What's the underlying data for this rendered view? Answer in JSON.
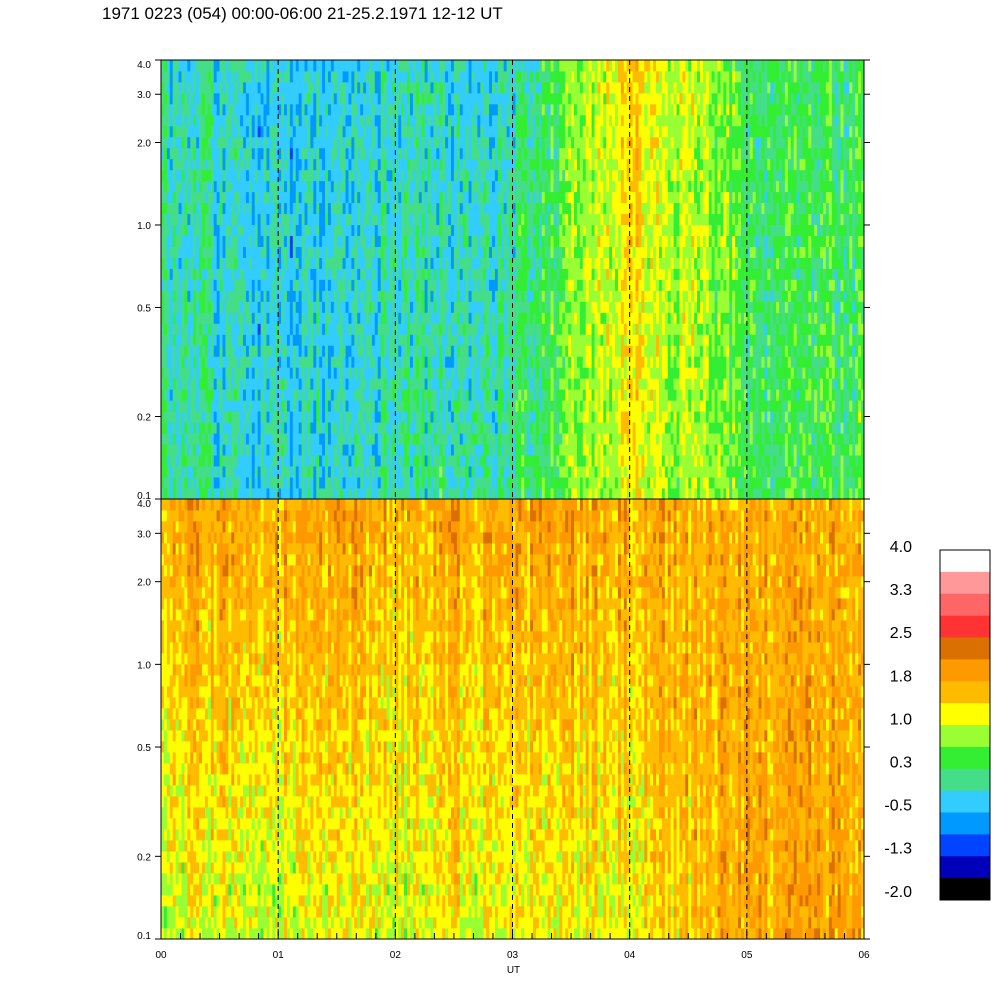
{
  "title": "1971 0223 (054) 00:00-06:00 21-25.2.1971  12-12 UT",
  "chart_data": {
    "type": "heatmap",
    "panels": [
      {
        "name": "",
        "y_scale": "log",
        "ylim": [
          0.1,
          4.0
        ],
        "y_ticks": [
          0.1,
          0.2,
          0.5,
          1.0,
          2.0,
          3.0,
          4.0
        ],
        "y_tick_labels": [
          "0.1",
          "0.2",
          "0.5",
          "1.0",
          "2.0",
          "3.0",
          "4.0"
        ],
        "dominant_levels_by_hour": [
          {
            "hour": "00",
            "low_freq": 0.1,
            "high_freq": 0.0
          },
          {
            "hour": "01",
            "low_freq": -0.3,
            "high_freq": -0.4
          },
          {
            "hour": "02",
            "low_freq": 0.0,
            "high_freq": -0.1
          },
          {
            "hour": "03",
            "low_freq": 0.1,
            "high_freq": -0.2
          },
          {
            "hour": "04",
            "low_freq": 1.2,
            "high_freq": 1.5
          },
          {
            "hour": "05",
            "low_freq": 0.4,
            "high_freq": 0.3
          }
        ]
      },
      {
        "name": "",
        "y_scale": "log",
        "ylim": [
          0.1,
          4.0
        ],
        "y_ticks": [
          0.1,
          0.2,
          0.5,
          1.0,
          2.0,
          3.0,
          4.0
        ],
        "y_tick_labels": [
          "0.1",
          "0.2",
          "0.5",
          "1.0",
          "2.0",
          "3.0",
          "4.0"
        ],
        "dominant_levels_by_hour": [
          {
            "hour": "00",
            "low_freq": 1.0,
            "high_freq": 1.8
          },
          {
            "hour": "01",
            "low_freq": 1.0,
            "high_freq": 1.8
          },
          {
            "hour": "02",
            "low_freq": 1.1,
            "high_freq": 1.7
          },
          {
            "hour": "03",
            "low_freq": 1.1,
            "high_freq": 1.8
          },
          {
            "hour": "04",
            "low_freq": 1.2,
            "high_freq": 1.8
          },
          {
            "hour": "05",
            "low_freq": 1.8,
            "high_freq": 1.7
          }
        ]
      }
    ],
    "x_ticks": [
      "00",
      "01",
      "02",
      "03",
      "04",
      "05",
      "06"
    ],
    "xlabel": "UT",
    "xlim": [
      0,
      6
    ],
    "hour_markers": [
      1,
      2,
      3,
      4,
      5
    ],
    "colorbar": {
      "tick_labels": [
        "4.0",
        "3.3",
        "2.5",
        "1.8",
        "1.0",
        "0.3",
        "-0.5",
        "-1.3",
        "-2.0"
      ],
      "range": [
        -2.0,
        4.0
      ],
      "colors": [
        "#ffffff",
        "#ff9999",
        "#ff6666",
        "#ff3333",
        "#d97000",
        "#ff9900",
        "#ffbb00",
        "#ffff00",
        "#99ff33",
        "#33ee33",
        "#44dd88",
        "#33ccff",
        "#0099ff",
        "#0044ff",
        "#0000bb",
        "#000000"
      ]
    }
  }
}
